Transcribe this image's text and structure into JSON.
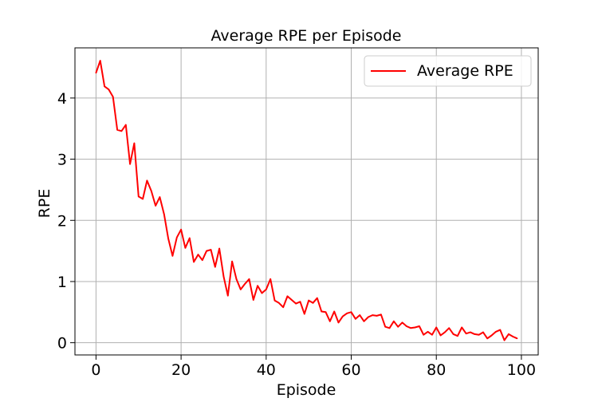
{
  "chart_data": {
    "type": "line",
    "title": "Average RPE per Episode",
    "xlabel": "Episode",
    "ylabel": "RPE",
    "xlim": [
      -4.95,
      103.95
    ],
    "ylim": [
      -0.2,
      4.82
    ],
    "xticks": [
      0,
      20,
      40,
      60,
      80,
      100
    ],
    "yticks": [
      0,
      1,
      2,
      3,
      4
    ],
    "grid": true,
    "legend_position": "top-right",
    "series": [
      {
        "name": "Average RPE",
        "color": "#ff0000",
        "x": [
          0,
          1,
          2,
          3,
          4,
          5,
          6,
          7,
          8,
          9,
          10,
          11,
          12,
          13,
          14,
          15,
          16,
          17,
          18,
          19,
          20,
          21,
          22,
          23,
          24,
          25,
          26,
          27,
          28,
          29,
          30,
          31,
          32,
          33,
          34,
          35,
          36,
          37,
          38,
          39,
          40,
          41,
          42,
          43,
          44,
          45,
          46,
          47,
          48,
          49,
          50,
          51,
          52,
          53,
          54,
          55,
          56,
          57,
          58,
          59,
          60,
          61,
          62,
          63,
          64,
          65,
          66,
          67,
          68,
          69,
          70,
          71,
          72,
          73,
          74,
          75,
          76,
          77,
          78,
          79,
          80,
          81,
          82,
          83,
          84,
          85,
          86,
          87,
          88,
          89,
          90,
          91,
          92,
          93,
          94,
          95,
          96,
          97,
          98,
          99
        ],
        "y": [
          4.41,
          4.61,
          4.19,
          4.14,
          4.02,
          3.48,
          3.46,
          3.56,
          2.92,
          3.26,
          2.39,
          2.35,
          2.65,
          2.48,
          2.24,
          2.38,
          2.1,
          1.7,
          1.42,
          1.72,
          1.85,
          1.55,
          1.71,
          1.32,
          1.44,
          1.35,
          1.5,
          1.52,
          1.24,
          1.54,
          1.08,
          0.77,
          1.33,
          1.04,
          0.87,
          0.96,
          1.04,
          0.7,
          0.93,
          0.81,
          0.87,
          1.04,
          0.69,
          0.65,
          0.58,
          0.76,
          0.7,
          0.64,
          0.67,
          0.47,
          0.69,
          0.65,
          0.73,
          0.51,
          0.5,
          0.35,
          0.51,
          0.33,
          0.43,
          0.48,
          0.5,
          0.39,
          0.45,
          0.35,
          0.42,
          0.45,
          0.44,
          0.46,
          0.26,
          0.24,
          0.35,
          0.26,
          0.33,
          0.27,
          0.24,
          0.25,
          0.27,
          0.13,
          0.18,
          0.13,
          0.25,
          0.12,
          0.17,
          0.24,
          0.14,
          0.11,
          0.25,
          0.15,
          0.17,
          0.14,
          0.13,
          0.17,
          0.07,
          0.12,
          0.18,
          0.21,
          0.04,
          0.14,
          0.1,
          0.07
        ]
      }
    ]
  }
}
